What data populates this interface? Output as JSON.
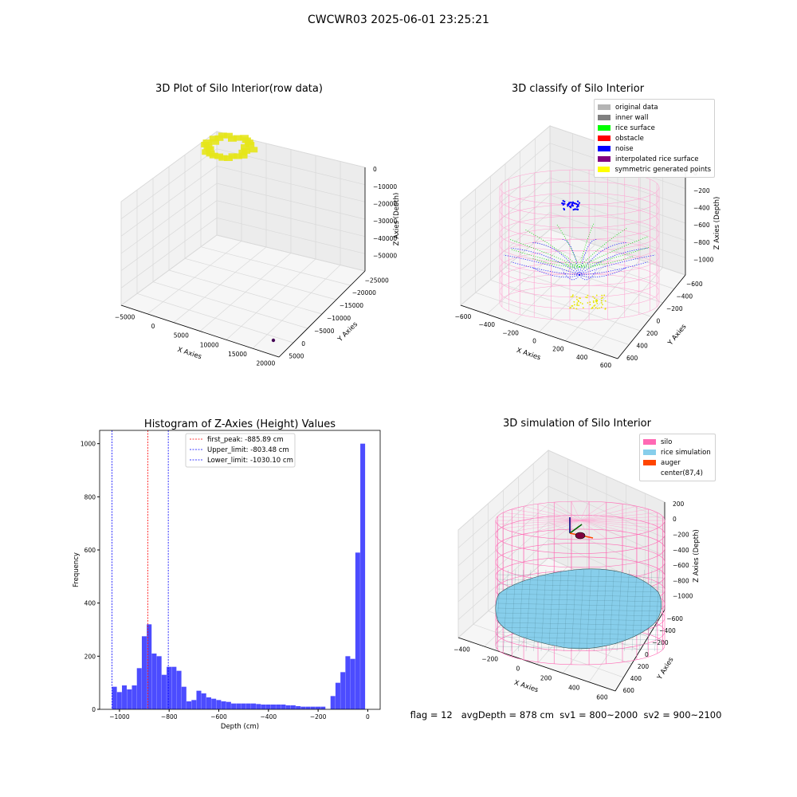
{
  "figure_title": "CWCWR03 2025-06-01 23:25:21",
  "panel1": {
    "title": "3D Plot of Silo Interior(row data)",
    "xlabel": "X Axies",
    "ylabel": "Y Axies",
    "zlabel": "Z Axies (Depth)",
    "xticks": [
      "−5000",
      "0",
      "5000",
      "10000",
      "15000",
      "20000"
    ],
    "yticks": [
      "5000",
      "0",
      "−5000",
      "−10000",
      "−15000",
      "−20000",
      "−25000"
    ],
    "zticks": [
      "0",
      "−10000",
      "−20000",
      "−30000",
      "−40000",
      "−50000"
    ]
  },
  "panel2": {
    "title": "3D classify of Silo Interior",
    "xlabel": "X Axies",
    "ylabel": "Y Axies",
    "zlabel": "Z Axies (Depth)",
    "xticks": [
      "−600",
      "−400",
      "−200",
      "0",
      "200",
      "400",
      "600"
    ],
    "yticks": [
      "600",
      "400",
      "200",
      "0",
      "−200",
      "−400",
      "−600"
    ],
    "zticks": [
      "0",
      "−200",
      "−400",
      "−600",
      "−800",
      "−1000"
    ],
    "legend": [
      {
        "label": "original data",
        "color": "#b4b4b4"
      },
      {
        "label": "inner wall",
        "color": "#808080"
      },
      {
        "label": "rice surface",
        "color": "#00ff00"
      },
      {
        "label": "obstacle",
        "color": "#ff0000"
      },
      {
        "label": "noise",
        "color": "#0000ff"
      },
      {
        "label": "interpolated rice surface",
        "color": "#800080"
      },
      {
        "label": "symmetric generated points",
        "color": "#ffff00"
      }
    ]
  },
  "panel4": {
    "title": "3D simulation of Silo Interior",
    "xlabel": "X Axies",
    "ylabel": "Y Axies",
    "zlabel": "Z Axies (Depth)",
    "xticks": [
      "−400",
      "−200",
      "0",
      "200",
      "400",
      "600"
    ],
    "yticks": [
      "600",
      "400",
      "200",
      "0",
      "−200",
      "−400",
      "−600"
    ],
    "zticks": [
      "200",
      "0",
      "−200",
      "−400",
      "−600",
      "−800",
      "−1000"
    ],
    "legend": [
      {
        "label": "silo",
        "color": "#ff69b4"
      },
      {
        "label": "rice simulation",
        "color": "#87ceeb"
      },
      {
        "label": "auger",
        "color": "#ff4500"
      },
      {
        "label": "center(87,4)",
        "color": ""
      }
    ]
  },
  "footer": "flag = 12   avgDepth = 878 cm  sv1 = 800~2000  sv2 = 900~2100",
  "chart_data": [
    {
      "type": "scatter",
      "title": "3D Plot of Silo Interior(row data)",
      "xlabel": "X Axies",
      "ylabel": "Y Axies",
      "zlabel": "Z Axies (Depth)",
      "xlim": [
        -5000,
        22000
      ],
      "ylim": [
        -25000,
        5000
      ],
      "zlim": [
        -55000,
        0
      ]
    },
    {
      "type": "scatter",
      "title": "3D classify of Silo Interior",
      "xlabel": "X Axies",
      "ylabel": "Y Axies",
      "zlabel": "Z Axies (Depth)",
      "xlim": [
        -600,
        600
      ],
      "ylim": [
        -600,
        600
      ],
      "zlim": [
        -1000,
        0
      ],
      "series": [
        {
          "name": "original data"
        },
        {
          "name": "inner wall"
        },
        {
          "name": "rice surface"
        },
        {
          "name": "obstacle"
        },
        {
          "name": "noise"
        },
        {
          "name": "interpolated rice surface"
        },
        {
          "name": "symmetric generated points"
        }
      ]
    },
    {
      "type": "bar",
      "title": "Histogram of Z-Axies (Height) Values",
      "xlabel": "Depth (cm)",
      "ylabel": "Frequency",
      "xlim": [
        -1080,
        50
      ],
      "ylim": [
        0,
        1050
      ],
      "xticks": [
        -1000,
        -800,
        -600,
        -400,
        -200,
        0
      ],
      "yticks": [
        0,
        200,
        400,
        600,
        800,
        1000
      ],
      "bin_start": -1030,
      "bin_width": 20,
      "values": [
        85,
        65,
        90,
        75,
        90,
        155,
        275,
        320,
        210,
        200,
        130,
        160,
        160,
        145,
        85,
        30,
        35,
        70,
        60,
        45,
        40,
        35,
        30,
        28,
        22,
        22,
        22,
        22,
        22,
        20,
        18,
        18,
        18,
        18,
        18,
        15,
        15,
        12,
        10,
        10,
        10,
        10,
        10,
        0,
        50,
        100,
        140,
        200,
        190,
        590,
        1000
      ],
      "bar_color": "#0000ff",
      "lines": [
        {
          "name": "first_peak: -885.89 cm",
          "x": -885.89,
          "color": "#ff0000"
        },
        {
          "name": "Upper_limit: -803.48 cm",
          "x": -803.48,
          "color": "#0000ff"
        },
        {
          "name": "Lower_limit: -1030.10 cm",
          "x": -1030.1,
          "color": "#0000ff"
        }
      ]
    },
    {
      "type": "area",
      "title": "3D simulation of Silo Interior",
      "xlabel": "X Axies",
      "ylabel": "Y Axies",
      "zlabel": "Z Axies (Depth)",
      "xlim": [
        -500,
        650
      ],
      "ylim": [
        -650,
        650
      ],
      "zlim": [
        -1000,
        250
      ],
      "series": [
        {
          "name": "silo"
        },
        {
          "name": "rice simulation"
        },
        {
          "name": "auger"
        },
        {
          "name": "center(87,4)"
        }
      ]
    }
  ]
}
